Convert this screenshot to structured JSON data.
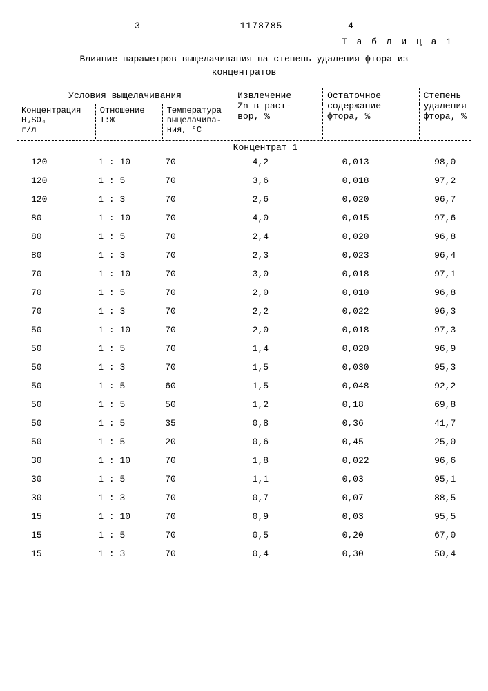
{
  "header": {
    "page_left": "3",
    "doc_number": "1178785",
    "page_right": "4",
    "table_label": "Т а б л и ц а  1",
    "title_line1": "Влияние параметров выщелачивания на степень удаления фтора из",
    "title_line2": "концентратов"
  },
  "columns": {
    "group1": "Условия выщелачивания",
    "col4a": "Извлечение",
    "col4b": "Zn в раст-",
    "col4c": "вор, %",
    "col5a": "Остаточное",
    "col5b": "содержание",
    "col5c": "фтора, %",
    "col6a": "Степень",
    "col6b": "удаления",
    "col6c": "фтора, %",
    "sub1a": "Концентрация",
    "sub1b": "H₂SO₄",
    "sub1c": "г/л",
    "sub2a": "Отношение",
    "sub2b": "Т:Ж",
    "sub3a": "Температура",
    "sub3b": "выщелачива-",
    "sub3c": "ния, °С"
  },
  "section1": "Концентрат 1",
  "rows": [
    {
      "c1": "120",
      "c2": "1 : 10",
      "c3": "70",
      "c4": "4,2",
      "c5": "0,013",
      "c6": "98,0"
    },
    {
      "c1": "120",
      "c2": "1 : 5",
      "c3": "70",
      "c4": "3,6",
      "c5": "0,018",
      "c6": "97,2"
    },
    {
      "c1": "120",
      "c2": "1 : 3",
      "c3": "70",
      "c4": "2,6",
      "c5": "0,020",
      "c6": "96,7"
    },
    {
      "c1": "80",
      "c2": "1 : 10",
      "c3": "70",
      "c4": "4,0",
      "c5": "0,015",
      "c6": "97,6"
    },
    {
      "c1": "80",
      "c2": "1 : 5",
      "c3": "70",
      "c4": "2,4",
      "c5": "0,020",
      "c6": "96,8"
    },
    {
      "c1": "80",
      "c2": "1 : 3",
      "c3": "70",
      "c4": "2,3",
      "c5": "0,023",
      "c6": "96,4"
    },
    {
      "c1": "70",
      "c2": "1 : 10",
      "c3": "70",
      "c4": "3,0",
      "c5": "0,018",
      "c6": "97,1"
    },
    {
      "c1": "70",
      "c2": "1 : 5",
      "c3": "70",
      "c4": "2,0",
      "c5": "0,010",
      "c6": "96,8"
    },
    {
      "c1": "70",
      "c2": "1 : 3",
      "c3": "70",
      "c4": "2,2",
      "c5": "0,022",
      "c6": "96,3"
    },
    {
      "c1": "50",
      "c2": "1 : 10",
      "c3": "70",
      "c4": "2,0",
      "c5": "0,018",
      "c6": "97,3"
    },
    {
      "c1": "50",
      "c2": "1 : 5",
      "c3": "70",
      "c4": "1,4",
      "c5": "0,020",
      "c6": "96,9"
    },
    {
      "c1": "50",
      "c2": "1 : 3",
      "c3": "70",
      "c4": "1,5",
      "c5": "0,030",
      "c6": "95,3"
    },
    {
      "c1": "50",
      "c2": "1 : 5",
      "c3": "60",
      "c4": "1,5",
      "c5": "0,048",
      "c6": "92,2"
    },
    {
      "c1": "50",
      "c2": "1 : 5",
      "c3": "50",
      "c4": "1,2",
      "c5": "0,18",
      "c6": "69,8"
    },
    {
      "c1": "50",
      "c2": "1 : 5",
      "c3": "35",
      "c4": "0,8",
      "c5": "0,36",
      "c6": "41,7"
    },
    {
      "c1": "50",
      "c2": "1 : 5",
      "c3": "20",
      "c4": "0,6",
      "c5": "0,45",
      "c6": "25,0"
    },
    {
      "c1": "30",
      "c2": "1 : 10",
      "c3": "70",
      "c4": "1,8",
      "c5": "0,022",
      "c6": "96,6"
    },
    {
      "c1": "30",
      "c2": "1 : 5",
      "c3": "70",
      "c4": "1,1",
      "c5": "0,03",
      "c6": "95,1"
    },
    {
      "c1": "30",
      "c2": "1 : 3",
      "c3": "70",
      "c4": "0,7",
      "c5": "0,07",
      "c6": "88,5"
    },
    {
      "c1": "15",
      "c2": "1 : 10",
      "c3": "70",
      "c4": "0,9",
      "c5": "0,03",
      "c6": "95,5"
    },
    {
      "c1": "15",
      "c2": "1 : 5",
      "c3": "70",
      "c4": "0,5",
      "c5": "0,20",
      "c6": "67,0"
    },
    {
      "c1": "15",
      "c2": "1 : 3",
      "c3": "70",
      "c4": "0,4",
      "c5": "0,30",
      "c6": "50,4"
    }
  ]
}
